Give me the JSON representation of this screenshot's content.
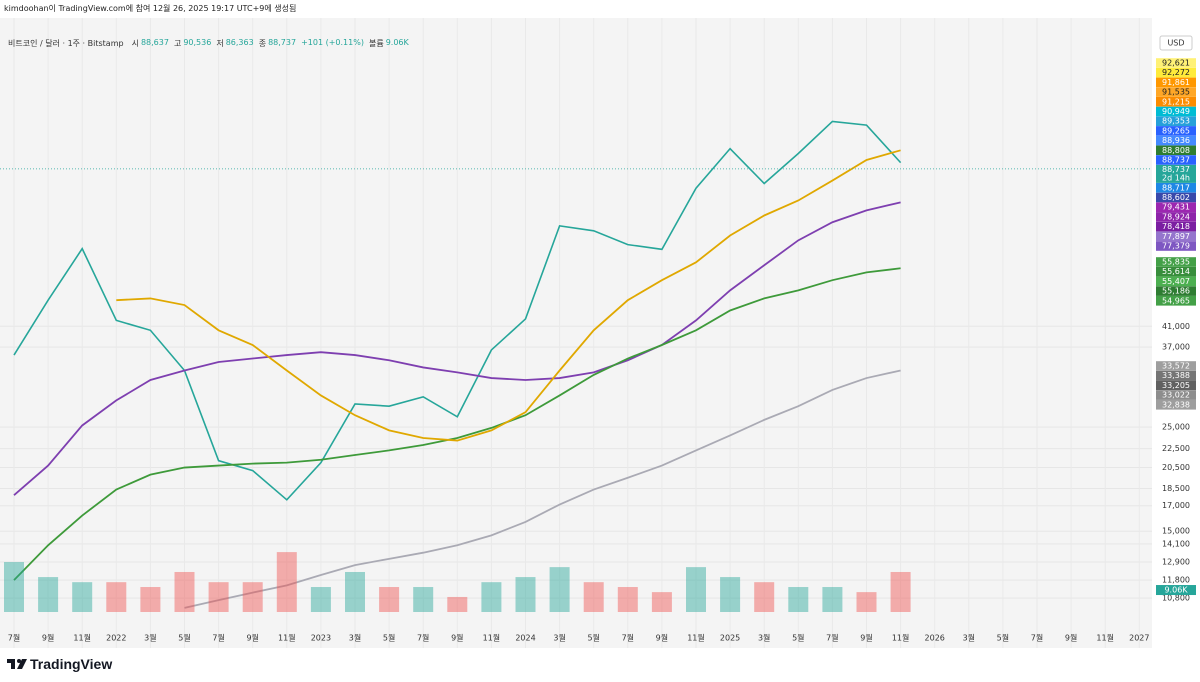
{
  "header": {
    "credit": "kimdoohan이 TradingView.com에 참여 12월 26, 2025 19:17 UTC+9에 생성됨",
    "symbol": "비트코인 / 달러 · 1주 · Bitstamp",
    "ohlc": [
      {
        "key": "시",
        "value": "88,637"
      },
      {
        "key": "고",
        "value": "90,536"
      },
      {
        "key": "저",
        "value": "86,363"
      },
      {
        "key": "종",
        "value": "88,737"
      }
    ],
    "change": "+101 (+0.11%)",
    "volume_key": "볼륨",
    "volume": "9.06K",
    "currency": "USD",
    "brand": "TradingView"
  },
  "chart_data": {
    "type": "line",
    "log_scale": true,
    "grid": true,
    "categories": [
      "7월",
      "9월",
      "11월",
      "2022",
      "3월",
      "5월",
      "7월",
      "9월",
      "11월",
      "2023",
      "3월",
      "5월",
      "7월",
      "9월",
      "11월",
      "2024",
      "3월",
      "5월",
      "7월",
      "9월",
      "11월",
      "2025",
      "3월",
      "5월",
      "7월",
      "9월",
      "11월",
      "2026",
      "3월",
      "5월",
      "7월",
      "9월",
      "11월",
      "2027"
    ],
    "series": [
      {
        "color": "#26a69a",
        "values": [
          35600,
          46600,
          60000,
          42200,
          40200,
          33000,
          21200,
          20200,
          17500,
          21000,
          28000,
          27700,
          29000,
          26300,
          36500,
          42500,
          67100,
          65500,
          61200,
          59800,
          80700,
          98000,
          82600,
          95700,
          112000,
          110000,
          91500,
          null,
          null,
          null,
          null,
          null,
          null,
          null
        ]
      },
      {
        "color": "#7e3fb0",
        "values": [
          17900,
          20700,
          25200,
          28500,
          31500,
          33000,
          34400,
          35000,
          35600,
          36100,
          35600,
          34700,
          33500,
          32700,
          31800,
          31500,
          31800,
          32700,
          34700,
          37400,
          42200,
          48900,
          55300,
          62500,
          68300,
          72400,
          75300,
          null,
          null,
          null,
          null,
          null,
          null,
          null
        ]
      },
      {
        "color": "#3e9a3a",
        "values": [
          11800,
          14000,
          16200,
          18400,
          19800,
          20500,
          20700,
          20900,
          21000,
          21300,
          21800,
          22300,
          22900,
          23700,
          24900,
          26500,
          29200,
          32300,
          35000,
          37400,
          40200,
          44300,
          47000,
          48900,
          51400,
          53400,
          54500,
          null,
          null,
          null,
          null,
          null,
          null,
          null
        ]
      },
      {
        "color": "#aaaab4",
        "values": [
          null,
          null,
          null,
          null,
          null,
          10300,
          10700,
          11100,
          11500,
          12100,
          12700,
          13100,
          13500,
          14000,
          14700,
          15700,
          17100,
          18400,
          19500,
          20700,
          22300,
          24000,
          25900,
          27700,
          30000,
          31800,
          33000,
          null,
          null,
          null,
          null,
          null,
          null,
          null
        ]
      },
      {
        "color": "#e0a800",
        "values": [
          null,
          null,
          null,
          46600,
          47000,
          45500,
          40200,
          37400,
          33000,
          29200,
          26500,
          24600,
          23700,
          23400,
          24600,
          26900,
          33000,
          40200,
          46600,
          51400,
          56100,
          64000,
          70600,
          76000,
          83800,
          92700,
          97200,
          null,
          null,
          null,
          null,
          null,
          null,
          null
        ]
      },
      {
        "type": "bar",
        "axis": "y2",
        "values": [
          20600,
          14400,
          12300,
          12300,
          10300,
          16500,
          12300,
          12300,
          24700,
          10300,
          16500,
          10300,
          10300,
          6200,
          12300,
          14400,
          18500,
          12300,
          10300,
          8200,
          18500,
          14400,
          12300,
          10300,
          10300,
          8200,
          16500,
          null,
          null,
          null,
          null,
          null,
          null,
          null
        ]
      }
    ],
    "ylim": [
      9330,
      167000
    ],
    "yticks": [
      {
        "value": 41000,
        "label": "41,000"
      },
      {
        "value": 37000,
        "label": "37,000"
      },
      {
        "value": 25000,
        "label": "25,000"
      },
      {
        "value": 22500,
        "label": "22,500"
      },
      {
        "value": 20500,
        "label": "20,500"
      },
      {
        "value": 18500,
        "label": "18,500"
      },
      {
        "value": 17000,
        "label": "17,000"
      },
      {
        "value": 15000,
        "label": "15,000"
      },
      {
        "value": 14100,
        "label": "14,100"
      },
      {
        "value": 12900,
        "label": "12,900"
      },
      {
        "value": 11800,
        "label": "11,800"
      },
      {
        "value": 10800,
        "label": "10,800"
      }
    ],
    "y2lim": [
      0,
      40000
    ],
    "volume_label": {
      "value": 9060,
      "label": "9.06K",
      "color": "#26a69a"
    },
    "price_labels": [
      [
        {
          "value": 92621,
          "label": "92,621",
          "color": "#fff176"
        },
        {
          "value": 92272,
          "label": "92,272",
          "color": "#ffeb3b"
        },
        {
          "value": 91861,
          "label": "91,861",
          "color": "#ff9800"
        },
        {
          "value": 91535,
          "label": "91,535",
          "color": "#ffa726"
        },
        {
          "value": 91215,
          "label": "91,215",
          "color": "#fb8c00"
        },
        {
          "value": 90949,
          "label": "90,949",
          "color": "#00bcd4"
        },
        {
          "value": 89353,
          "label": "89,353",
          "color": "#26a0da"
        },
        {
          "value": 89265,
          "label": "89,265",
          "color": "#2962ff"
        },
        {
          "value": 88936,
          "label": "88,936",
          "color": "#448aff"
        },
        {
          "value": 88808,
          "label": "88,808",
          "color": "#2e7d32"
        },
        {
          "value": 88737,
          "label": "88,737",
          "color": "#2962ff"
        },
        {
          "value": 88737,
          "label": "88,737",
          "sub": "2d 14h",
          "color": "#26a69a"
        },
        {
          "value": 88717,
          "label": "88,717",
          "color": "#1e88e5"
        },
        {
          "value": 88602,
          "label": "88,602",
          "color": "#3949ab"
        },
        {
          "value": 79431,
          "label": "79,431",
          "color": "#9c27b0"
        },
        {
          "value": 78924,
          "label": "78,924",
          "color": "#8e24aa"
        },
        {
          "value": 78418,
          "label": "78,418",
          "color": "#7b1fa2"
        },
        {
          "value": 77897,
          "label": "77,897",
          "color": "#9575cd"
        },
        {
          "value": 77379,
          "label": "77,379",
          "color": "#7e57c2"
        }
      ],
      [
        {
          "value": 55835,
          "label": "55,835",
          "color": "#43a047"
        },
        {
          "value": 55614,
          "label": "55,614",
          "color": "#388e3c"
        },
        {
          "value": 55407,
          "label": "55,407",
          "color": "#4caf50"
        },
        {
          "value": 55186,
          "label": "55,186",
          "color": "#2e7d32"
        },
        {
          "value": 54965,
          "label": "54,965",
          "color": "#43a047"
        }
      ],
      [
        {
          "value": 33572,
          "label": "33,572",
          "color": "#9e9e9e"
        },
        {
          "value": 33388,
          "label": "33,388",
          "color": "#757575"
        },
        {
          "value": 33205,
          "label": "33,205",
          "color": "#616161"
        },
        {
          "value": 33022,
          "label": "33,022",
          "color": "#8d8d8d"
        },
        {
          "value": 32838,
          "label": "32,838",
          "color": "#9e9e9e"
        }
      ]
    ]
  }
}
